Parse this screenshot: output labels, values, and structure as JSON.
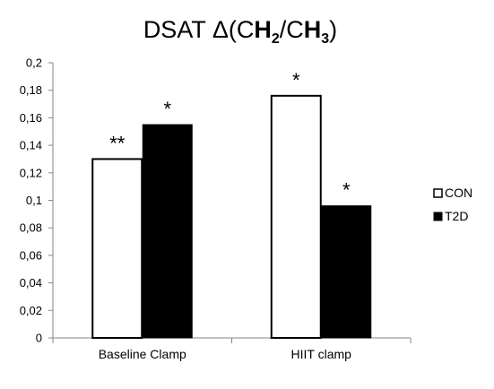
{
  "chart_data": {
    "type": "bar",
    "title": {
      "main": "DSAT Δ(C",
      "h": "H",
      "sub1": "2",
      "slash": "/C",
      "h2": "H",
      "sub2": "3",
      "close": ")"
    },
    "categories": [
      "Baseline Clamp",
      "HIIT clamp"
    ],
    "series": [
      {
        "name": "CON",
        "color": "#ffffff",
        "values": [
          0.13,
          0.176
        ],
        "significance": [
          "**",
          "*"
        ]
      },
      {
        "name": "T2D",
        "color": "#000000",
        "values": [
          0.155,
          0.096
        ],
        "significance": [
          "*",
          "*"
        ]
      }
    ],
    "ylim": [
      0,
      0.2
    ],
    "yticks": [
      "0",
      "0,02",
      "0,04",
      "0,06",
      "0,08",
      "0,1",
      "0,12",
      "0,14",
      "0,16",
      "0,18",
      "0,2"
    ],
    "grid": false,
    "legend": "right"
  }
}
